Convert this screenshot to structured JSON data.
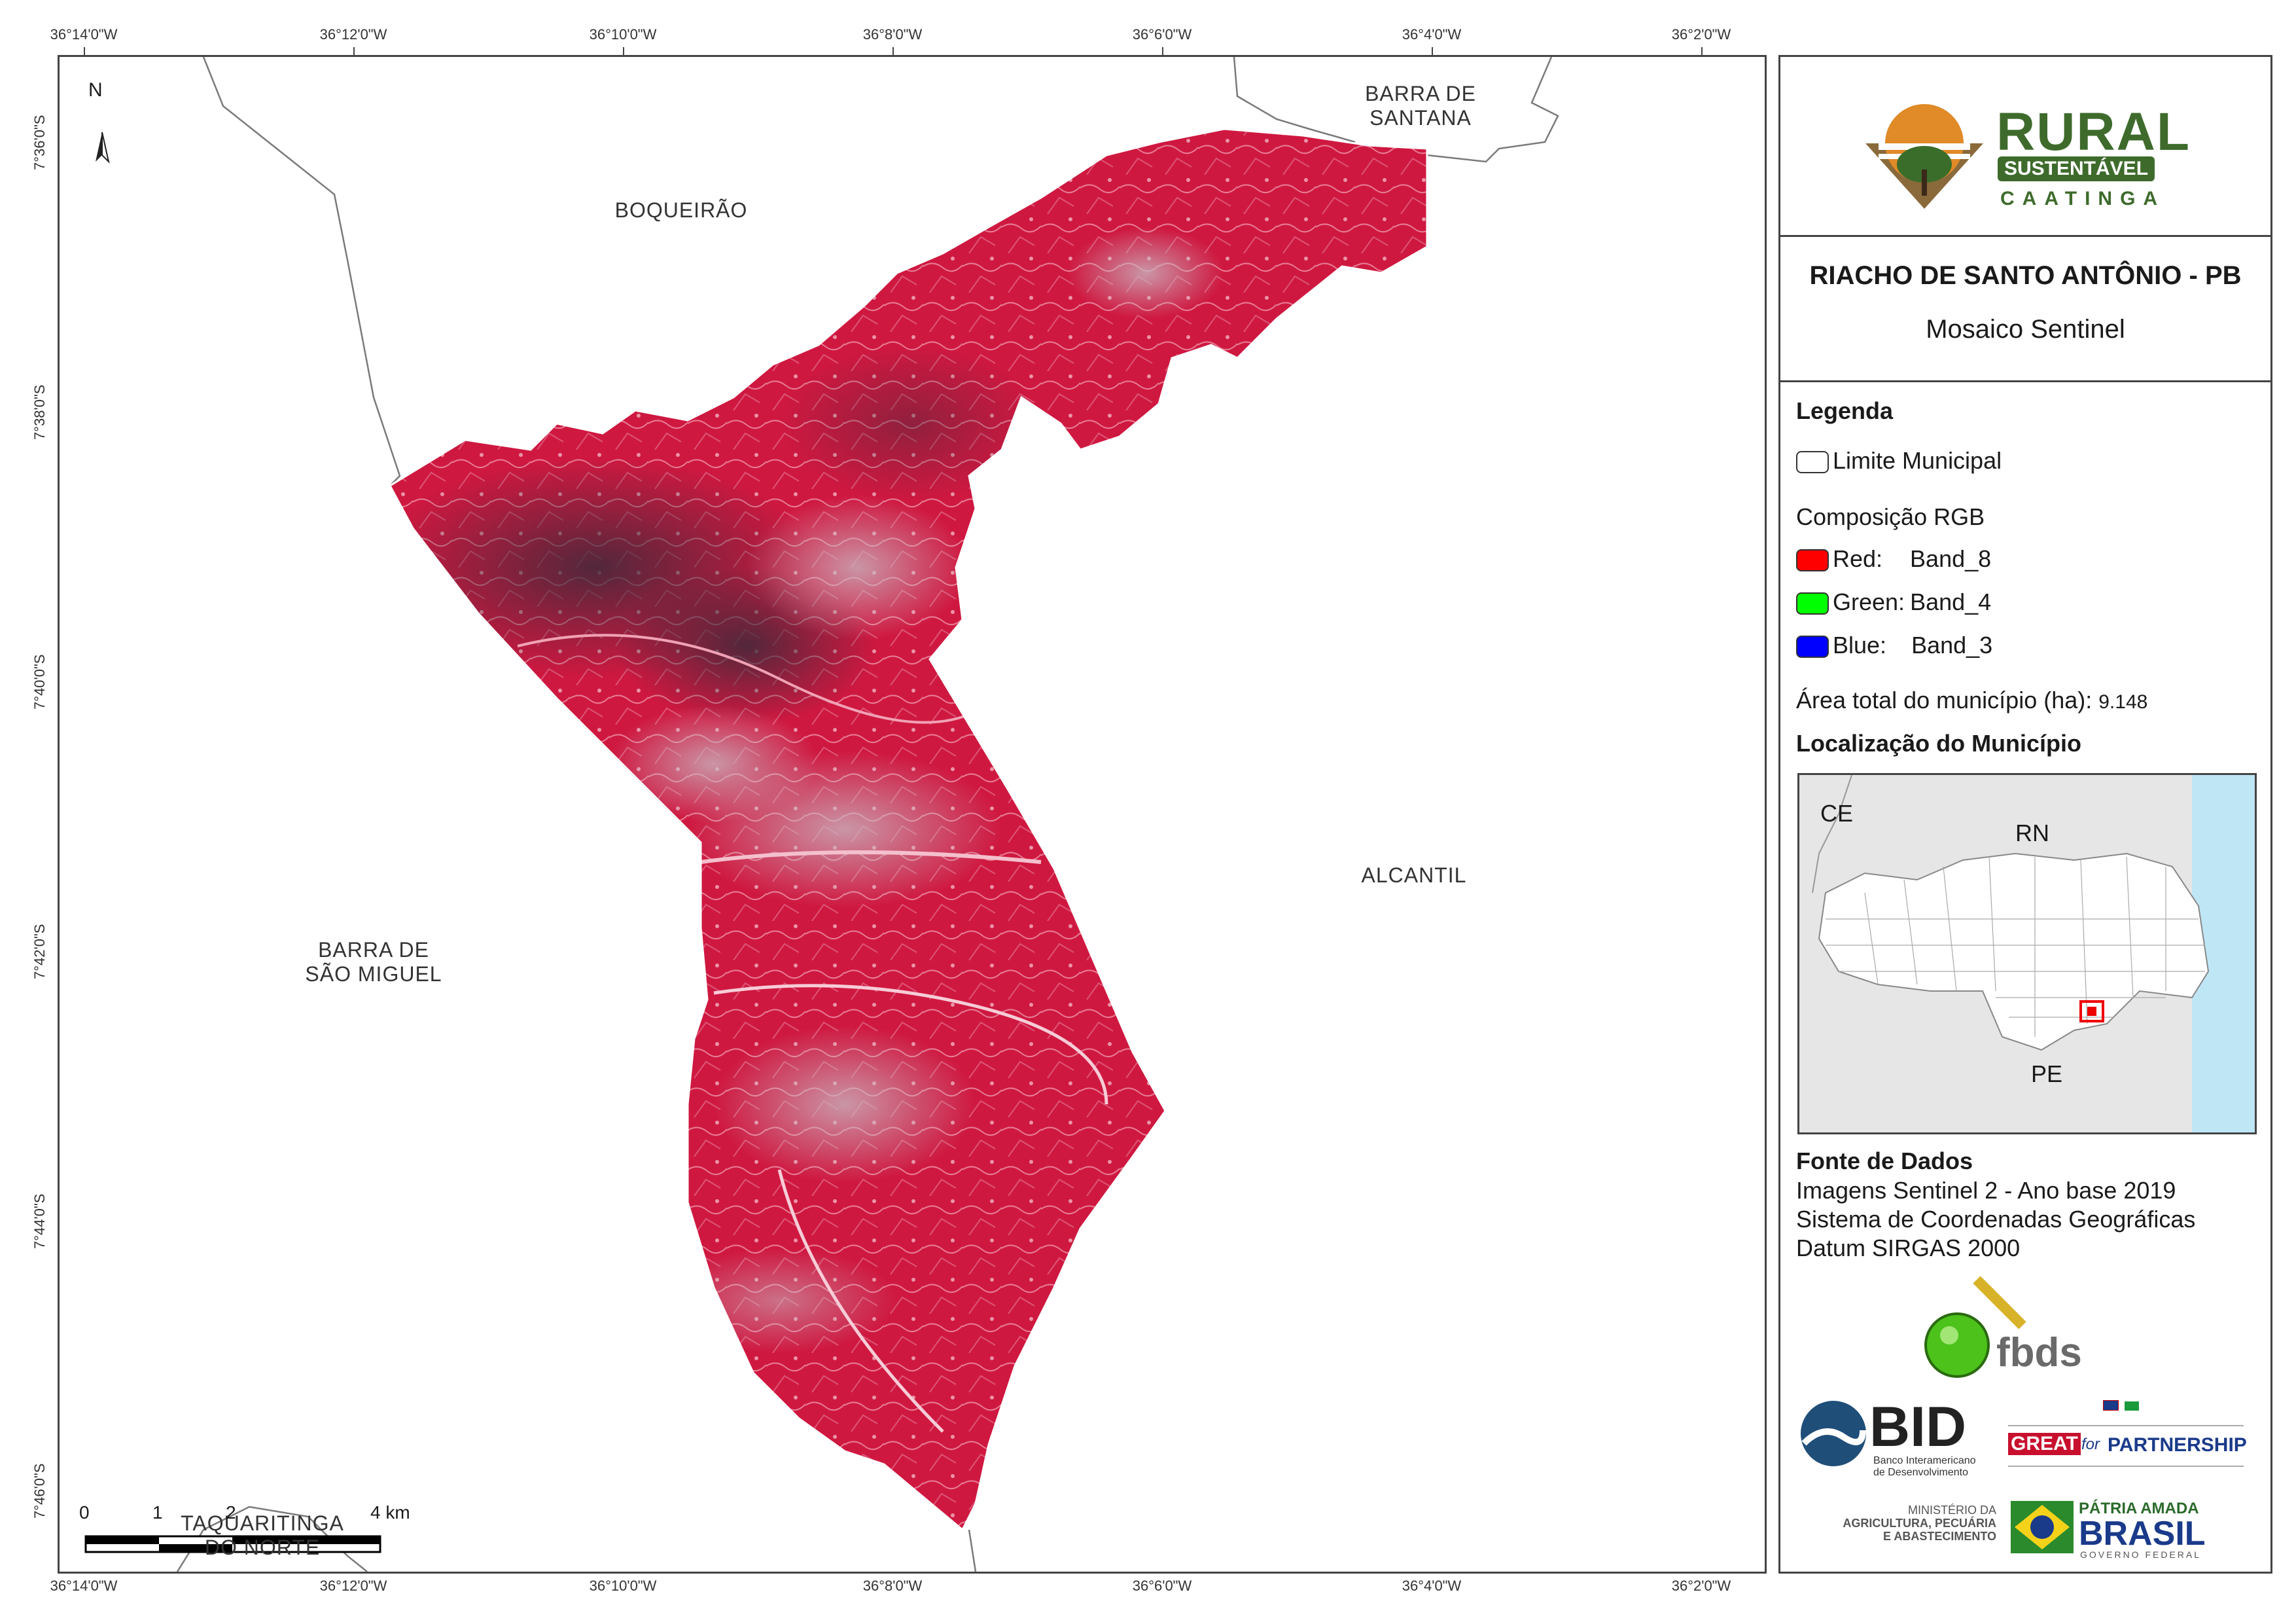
{
  "map": {
    "top_ticks": [
      "36°14'0\"W",
      "36°12'0\"W",
      "36°10'0\"W",
      "36°8'0\"W",
      "36°6'0\"W",
      "36°4'0\"W",
      "36°2'0\"W"
    ],
    "bottom_ticks": [
      "36°14'0\"W",
      "36°12'0\"W",
      "36°10'0\"W",
      "36°8'0\"W",
      "36°6'0\"W",
      "36°4'0\"W",
      "36°2'0\"W"
    ],
    "left_ticks": [
      "7°36'0\"S",
      "7°38'0\"S",
      "7°40'0\"S",
      "7°42'0\"S",
      "7°44'0\"S",
      "7°46'0\"S"
    ],
    "north_label": "N",
    "places": {
      "barra_santana": [
        "BARRA DE",
        "SANTANA"
      ],
      "boqueirao": "BOQUEIRÃO",
      "alcantil": "ALCANTIL",
      "barra_sao_miguel": [
        "BARRA DE",
        "SÃO MIGUEL"
      ],
      "taquaritinga": [
        "TAQUARITINGA",
        "DO NORTE"
      ]
    },
    "scale": {
      "labels": [
        "0",
        "1",
        "2",
        "4 km"
      ]
    },
    "colors": {
      "composite_red": "#d3143c",
      "boundary": "#7a7a7a"
    }
  },
  "panel": {
    "logo": {
      "rural": "RURAL",
      "sustentavel": "SUSTENTÁVEL",
      "caatinga": "CAATINGA"
    },
    "title": "RIACHO DE SANTO ANTÔNIO - PB",
    "subtitle": "Mosaico Sentinel",
    "legend_heading": "Legenda",
    "limite": "Limite Municipal",
    "composicao": "Composição RGB",
    "bands": [
      {
        "label": "Red:",
        "band": "Band_8",
        "color": "#ff0000"
      },
      {
        "label": "Green:",
        "band": "Band_4",
        "color": "#00ff00"
      },
      {
        "label": "Blue:",
        "band": "Band_3",
        "color": "#0000ff"
      }
    ],
    "area_label": "Área total do município (ha):",
    "area_value": "9.148",
    "location_heading": "Localização do Município",
    "inset": {
      "ce": "CE",
      "rn": "RN",
      "pe": "PE"
    },
    "fonte_heading": "Fonte de Dados",
    "fonte_lines": [
      "Imagens Sentinel 2 - Ano base 2019",
      "Sistema de Coordenadas Geográficas",
      "Datum SIRGAS 2000"
    ],
    "logos": {
      "fbds": "fbds",
      "bid": "BID",
      "bid_sub1": "Banco Interamericano",
      "bid_sub2": "de Desenvolvimento",
      "great": "GREAT",
      "for": "for",
      "partnership": "PARTNERSHIP",
      "ministerio": [
        "MINISTÉRIO DA",
        "AGRICULTURA, PECUÁRIA",
        "E ABASTECIMENTO"
      ],
      "patria": "PÁTRIA AMADA",
      "brasil": "BRASIL",
      "governo": "GOVERNO FEDERAL"
    }
  }
}
